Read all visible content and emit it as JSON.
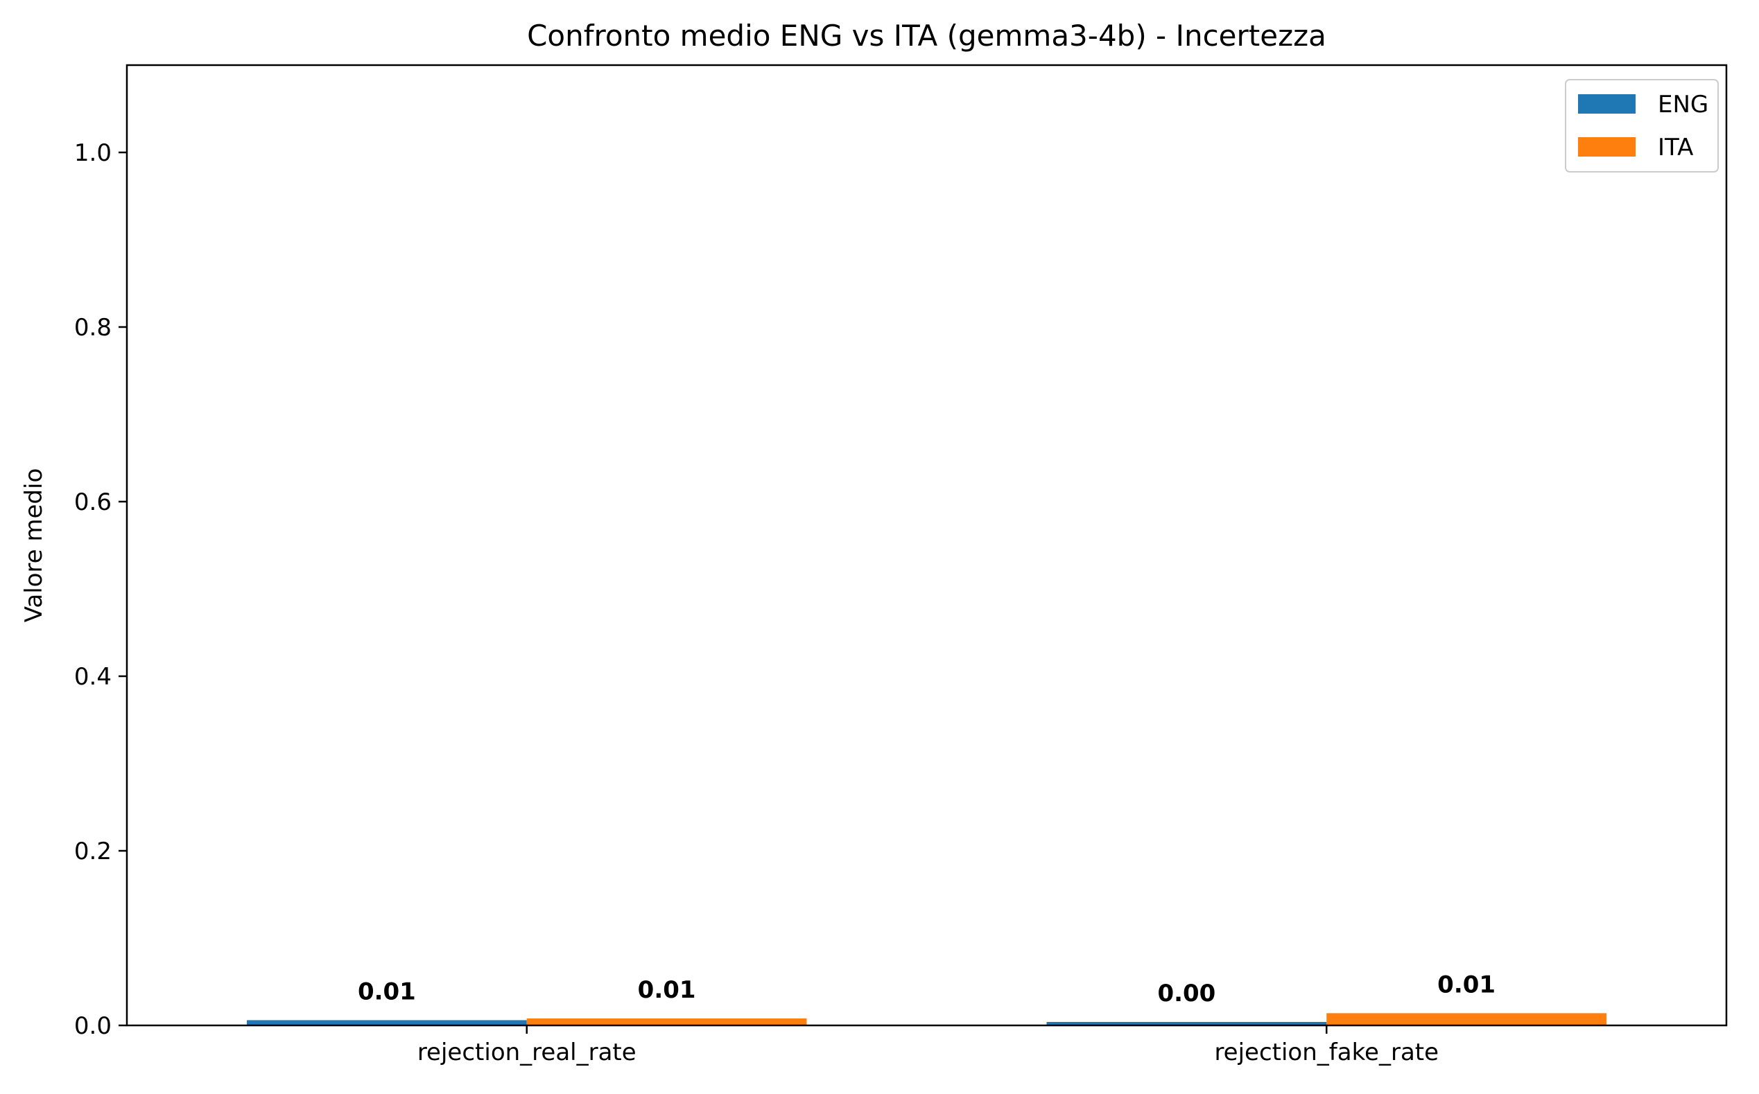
{
  "chart_data": {
    "type": "bar",
    "title": "Confronto medio ENG vs ITA (gemma3-4b) - Incertezza",
    "xlabel": "",
    "ylabel": "Valore medio",
    "categories": [
      "rejection_real_rate",
      "rejection_fake_rate"
    ],
    "series": [
      {
        "name": "ENG",
        "color": "#1f77b4",
        "values": [
          0.006,
          0.004
        ],
        "labels": [
          "0.01",
          "0.00"
        ]
      },
      {
        "name": "ITA",
        "color": "#ff7f0e",
        "values": [
          0.008,
          0.014
        ],
        "labels": [
          "0.01",
          "0.01"
        ]
      }
    ],
    "ylim": [
      0,
      1.1
    ],
    "yticks": [
      0.0,
      0.2,
      0.4,
      0.6,
      0.8,
      1.0
    ],
    "ytick_labels": [
      "0.0",
      "0.2",
      "0.4",
      "0.6",
      "0.8",
      "1.0"
    ],
    "grid": false,
    "legend_position": "top-right"
  }
}
